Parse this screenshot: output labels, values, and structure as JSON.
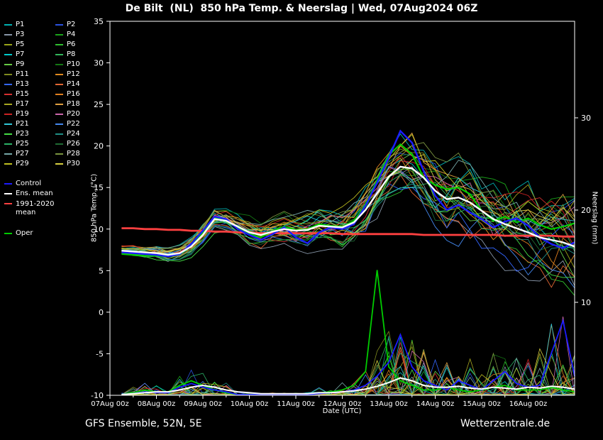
{
  "header": {
    "title": "De Bilt  (NL)  850 hPa Temp. & Neerslag | Wed, 07Aug2024 06Z"
  },
  "footer": {
    "left": "GFS Ensemble, 52N, 5E",
    "right": "Wetterzentrale.de"
  },
  "axes": {
    "y_left": {
      "label": "850 hPa Temp. (°C)",
      "min": -10,
      "max": 35,
      "ticks": [
        -10,
        -5,
        0,
        5,
        10,
        15,
        20,
        25,
        30,
        35
      ]
    },
    "y_right": {
      "label": "Neerslag (mm)",
      "ticks": [
        10,
        20,
        30
      ]
    },
    "x": {
      "label": "Date (UTC)",
      "tick_labels": [
        "07Aug 00z",
        "08Aug 00z",
        "09Aug 00z",
        "10Aug 00z",
        "11Aug 00z",
        "12Aug 00z",
        "13Aug 00z",
        "14Aug 00z",
        "15Aug 00z",
        "16Aug 00z"
      ]
    }
  },
  "legend": {
    "member_labels": [
      "P1",
      "P2",
      "P3",
      "P4",
      "P5",
      "P6",
      "P7",
      "P8",
      "P9",
      "P10",
      "P11",
      "P12",
      "P13",
      "P14",
      "P15",
      "P16",
      "P17",
      "P18",
      "P19",
      "P20",
      "P21",
      "P22",
      "P23",
      "P24",
      "P25",
      "P26",
      "P27",
      "P28",
      "P29",
      "P30"
    ],
    "member_colors": [
      "#00b2b2",
      "#2a52e0",
      "#8896a8",
      "#1aa31a",
      "#9aa619",
      "#2fbf2f",
      "#00cccc",
      "#33b65c",
      "#66cc44",
      "#147814",
      "#7f8c1e",
      "#e08a1f",
      "#3366ff",
      "#e06633",
      "#d63030",
      "#e07f1f",
      "#a8a820",
      "#e0a040",
      "#cc2222",
      "#cc66aa",
      "#30c8d8",
      "#4488ee",
      "#44dd44",
      "#1f8f85",
      "#2ab266",
      "#1f6b33",
      "#76a8a8",
      "#7a9440",
      "#c0c020",
      "#d8d040"
    ],
    "control": {
      "label": "Control",
      "color": "#1c1cff"
    },
    "ens_mean": {
      "label": "Ens. mean",
      "color": "#ffffff"
    },
    "clim": {
      "label": "1991-2020 mean",
      "color": "#ff4040"
    },
    "oper": {
      "label": "Oper",
      "color": "#00cc00"
    }
  },
  "chart_data": {
    "type": "line",
    "title": "De Bilt (NL) 850 hPa Temp. & Neerslag | Wed, 07Aug2024 06Z",
    "xlabel": "Date (UTC)",
    "ylabel_left": "850 hPa Temp. (°C)",
    "ylabel_right": "Neerslag (mm)",
    "ylim_left": [
      -10,
      35
    ],
    "x_range_hours": [
      0,
      240
    ],
    "x_hours": [
      6,
      12,
      18,
      24,
      30,
      36,
      42,
      48,
      54,
      60,
      66,
      72,
      78,
      84,
      90,
      96,
      102,
      108,
      114,
      120,
      126,
      132,
      138,
      144,
      150,
      156,
      162,
      168,
      174,
      180,
      186,
      192,
      198,
      204,
      210,
      216,
      222,
      228,
      234,
      240
    ],
    "temp_series": [
      {
        "name": "1991-2020 mean",
        "key": "clim",
        "color": "#ff4040",
        "width": 2.8,
        "values": [
          10.1,
          10.1,
          10.0,
          10.0,
          9.9,
          9.9,
          9.8,
          9.8,
          9.7,
          9.7,
          9.6,
          9.6,
          9.5,
          9.5,
          9.5,
          9.5,
          9.5,
          9.5,
          9.5,
          9.4,
          9.4,
          9.4,
          9.4,
          9.4,
          9.4,
          9.4,
          9.3,
          9.3,
          9.3,
          9.3,
          9.3,
          9.3,
          9.3,
          9.2,
          9.2,
          9.2,
          9.2,
          9.2,
          9.1,
          9.1
        ]
      },
      {
        "name": "Oper",
        "key": "oper",
        "color": "#00cc00",
        "width": 2.2,
        "values": [
          7.0,
          6.9,
          6.8,
          6.8,
          6.7,
          7.0,
          8.0,
          9.6,
          11.4,
          11.1,
          10.2,
          9.4,
          9.0,
          9.8,
          10.3,
          9.9,
          10.0,
          10.6,
          10.4,
          10.3,
          11.0,
          12.9,
          15.9,
          18.9,
          20.2,
          19.0,
          16.2,
          15.3,
          14.8,
          15.0,
          14.2,
          12.2,
          11.0,
          11.5,
          10.8,
          11.3,
          10.5,
          10.0,
          10.3,
          10.7
        ]
      },
      {
        "name": "Control",
        "key": "control",
        "color": "#1c1cff",
        "width": 2.4,
        "values": [
          7.2,
          7.1,
          7.0,
          6.9,
          6.7,
          7.0,
          8.2,
          9.8,
          11.5,
          11.2,
          10.0,
          9.3,
          8.7,
          9.4,
          10.2,
          9.0,
          8.3,
          9.6,
          10.2,
          10.0,
          10.6,
          12.8,
          15.6,
          18.6,
          21.8,
          20.4,
          17.0,
          14.0,
          12.3,
          12.9,
          12.0,
          11.2,
          10.2,
          10.9,
          11.3,
          10.4,
          9.0,
          8.2,
          7.7,
          8.4
        ]
      },
      {
        "name": "Ens. mean",
        "key": "ens_mean",
        "color": "#ffffff",
        "width": 2.4,
        "values": [
          7.4,
          7.3,
          7.2,
          7.1,
          6.9,
          7.1,
          7.9,
          9.3,
          11.2,
          11.0,
          10.3,
          9.6,
          9.3,
          9.7,
          10.0,
          9.8,
          9.9,
          10.4,
          10.3,
          10.2,
          10.8,
          12.3,
          14.3,
          16.3,
          17.5,
          17.3,
          16.2,
          14.6,
          13.6,
          13.8,
          13.2,
          12.2,
          11.2,
          10.6,
          10.1,
          9.6,
          9.0,
          8.7,
          8.4,
          7.9
        ]
      }
    ],
    "precip_series": [
      {
        "name": "Oper",
        "key": "oper",
        "color": "#00cc00",
        "width": 1.8,
        "values_mm": [
          0,
          0.2,
          0.5,
          0.3,
          0.3,
          1.0,
          1.5,
          1.0,
          0.5,
          0.2,
          0,
          0,
          0,
          0,
          0,
          0,
          0,
          0.2,
          0.3,
          0.5,
          1.0,
          2.5,
          13.5,
          3.0,
          1.5,
          1.0,
          0.5,
          0.5,
          0.8,
          0.5,
          0.3,
          0.5,
          0.8,
          1.0,
          0.5,
          0.5,
          0.5,
          0.8,
          0.5,
          0.3
        ]
      },
      {
        "name": "Control",
        "key": "control",
        "color": "#1c1cff",
        "width": 1.8,
        "values_mm": [
          0,
          0.1,
          0.3,
          0.2,
          0.2,
          0.8,
          1.2,
          0.8,
          0.5,
          0.3,
          0,
          0,
          0,
          0,
          0,
          0,
          0,
          0.1,
          0.2,
          0.3,
          0.5,
          1.0,
          2.0,
          3.5,
          6.5,
          3.0,
          1.5,
          1.0,
          0.5,
          1.5,
          1.0,
          0.5,
          1.5,
          2.5,
          1.2,
          0.8,
          1.0,
          4.5,
          8.0,
          2.0
        ]
      },
      {
        "name": "Ens. mean",
        "key": "ens_mean",
        "color": "#ffffff",
        "width": 2.0,
        "values_mm": [
          0,
          0.1,
          0.2,
          0.3,
          0.3,
          0.5,
          0.8,
          1.0,
          0.8,
          0.5,
          0.3,
          0.2,
          0.1,
          0.1,
          0.1,
          0.1,
          0.1,
          0.2,
          0.2,
          0.3,
          0.4,
          0.6,
          0.9,
          1.3,
          1.8,
          1.5,
          1.0,
          0.8,
          0.8,
          0.9,
          0.7,
          0.6,
          0.8,
          0.7,
          0.6,
          0.8,
          0.7,
          0.9,
          0.8,
          0.6
        ]
      }
    ],
    "ensemble": {
      "count": 30,
      "temp_spread_degC": [
        0.6,
        0.6,
        0.7,
        0.7,
        0.8,
        0.8,
        0.9,
        1.0,
        1.0,
        1.1,
        1.1,
        1.2,
        1.3,
        1.3,
        1.4,
        1.5,
        1.6,
        1.7,
        1.8,
        2.0,
        2.2,
        2.4,
        2.7,
        3.0,
        3.2,
        3.4,
        3.5,
        3.6,
        3.6,
        3.6,
        3.7,
        3.7,
        3.8,
        3.8,
        3.9,
        4.0,
        4.2,
        4.4,
        4.6,
        4.8
      ],
      "precip_prob": [
        0.1,
        0.2,
        0.4,
        0.3,
        0.3,
        0.5,
        0.6,
        0.5,
        0.4,
        0.3,
        0.1,
        0.05,
        0.05,
        0.05,
        0.05,
        0.05,
        0.1,
        0.15,
        0.2,
        0.25,
        0.3,
        0.4,
        0.5,
        0.6,
        0.6,
        0.5,
        0.45,
        0.4,
        0.4,
        0.4,
        0.4,
        0.4,
        0.45,
        0.45,
        0.4,
        0.4,
        0.4,
        0.45,
        0.45,
        0.4
      ],
      "precip_max_mm": [
        0.5,
        0.8,
        1.5,
        1.0,
        1.0,
        2.0,
        3.0,
        2.5,
        2.0,
        1.5,
        0.5,
        0.3,
        0.3,
        0.3,
        0.3,
        0.3,
        0.5,
        0.8,
        1.0,
        1.5,
        2.0,
        3.0,
        5.0,
        7.0,
        8.0,
        6.0,
        5.0,
        4.0,
        4.0,
        4.0,
        4.0,
        4.0,
        5.0,
        5.0,
        4.0,
        5.0,
        5.0,
        8.0,
        9.0,
        6.0
      ]
    }
  }
}
